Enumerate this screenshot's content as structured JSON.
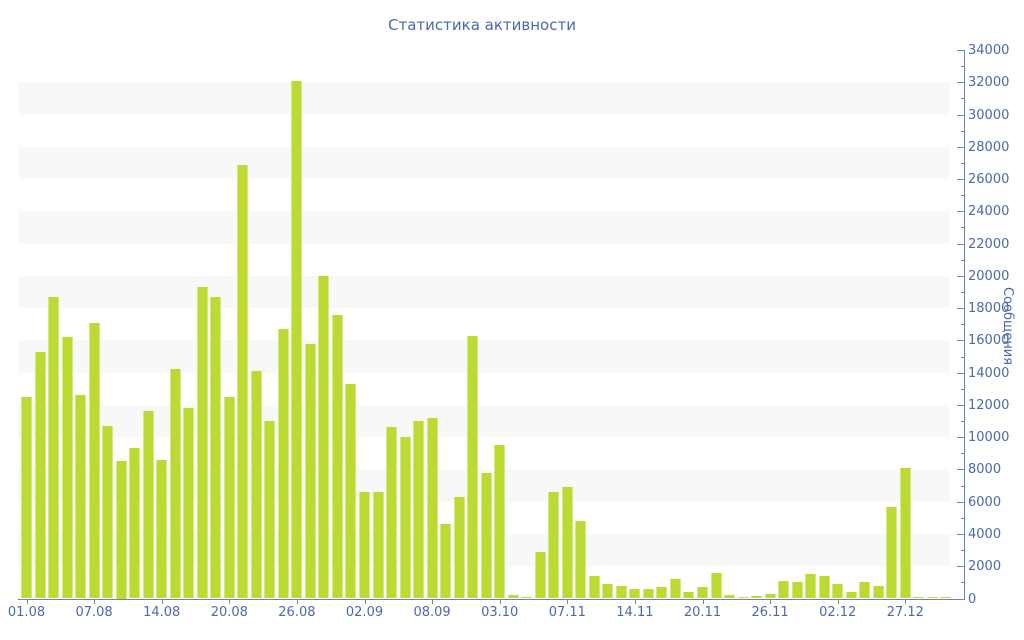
{
  "chart_data": {
    "type": "bar",
    "title": "Статистика активности",
    "ylabel": "Сообщения",
    "ylim": [
      0,
      34000
    ],
    "y_major_step": 2000,
    "y_minor_step": 1000,
    "legend": "none",
    "grid": "alternating light-gray horizontal bands every 2000 units",
    "band_ranges": [
      [
        2000,
        4000
      ],
      [
        6000,
        8000
      ],
      [
        10000,
        12000
      ],
      [
        14000,
        16000
      ],
      [
        18000,
        20000
      ],
      [
        22000,
        24000
      ],
      [
        26000,
        28000
      ],
      [
        30000,
        32000
      ]
    ],
    "y_tick_labels": [
      "0",
      "2000",
      "4000",
      "6000",
      "8000",
      "10000",
      "12000",
      "14000",
      "16000",
      "18000",
      "20000",
      "22000",
      "24000",
      "26000",
      "28000",
      "30000",
      "32000",
      "34000"
    ],
    "values": [
      12500,
      15300,
      18700,
      16200,
      12600,
      17100,
      10700,
      8500,
      9300,
      11600,
      8600,
      14200,
      11800,
      19300,
      18700,
      12500,
      26900,
      14100,
      11000,
      16700,
      32100,
      15800,
      20000,
      17600,
      13300,
      6600,
      6600,
      10600,
      10000,
      11000,
      11200,
      4600,
      6300,
      16300,
      7800,
      9500,
      200,
      100,
      2900,
      6600,
      6900,
      4800,
      1400,
      900,
      800,
      600,
      600,
      700,
      1200,
      400,
      700,
      1600,
      200,
      100,
      150,
      300,
      1100,
      1000,
      1500,
      1400,
      900,
      400,
      1000,
      800,
      5700,
      8100,
      100,
      100,
      100
    ],
    "x_tick_positions": [
      0,
      5,
      10,
      15,
      20,
      25,
      30,
      35,
      40,
      45,
      50,
      55,
      60,
      65
    ],
    "x_tick_labels": [
      "01.08",
      "07.08",
      "14.08",
      "20.08",
      "26.08",
      "02.09",
      "08.09",
      "03.10",
      "07.11",
      "14.11",
      "20.11",
      "26.11",
      "02.12",
      "27.12"
    ],
    "colors": {
      "bar": "#bcda34",
      "bar_highlight": "#d6e97f",
      "axis_line": "#6d83b4",
      "text": "#4a69b0",
      "band": "#f8f8f8",
      "background": "#ffffff"
    }
  }
}
